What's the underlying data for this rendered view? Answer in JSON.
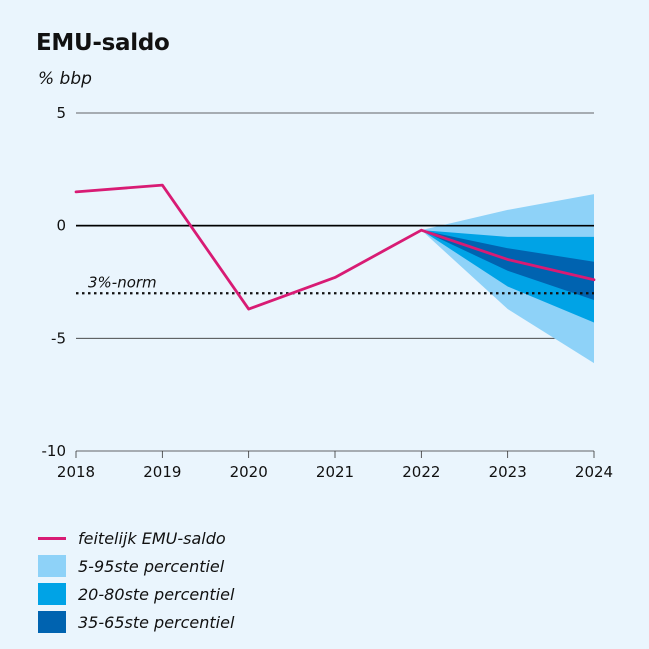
{
  "chart_data": {
    "type": "line",
    "title": "EMU-saldo",
    "ylabel": "% bbp",
    "xlabel": "",
    "x": [
      2018,
      2019,
      2020,
      2021,
      2022,
      2023,
      2024
    ],
    "ylim": [
      -10,
      5
    ],
    "yticks": [
      5,
      0,
      -5,
      -10
    ],
    "grid": true,
    "series": [
      {
        "name": "feitelijk EMU-saldo",
        "x": [
          2018,
          2019,
          2020,
          2021,
          2022,
          2023,
          2024
        ],
        "values": [
          1.5,
          1.8,
          -3.7,
          -2.3,
          -0.2,
          -1.5,
          -2.4
        ],
        "color": "#d81b74"
      }
    ],
    "bands": [
      {
        "name": "5-95ste percentiel",
        "color": "#8ed2f8",
        "x": [
          2022,
          2023,
          2024
        ],
        "upper": [
          -0.2,
          0.7,
          1.4
        ],
        "lower": [
          -0.2,
          -3.7,
          -6.1
        ]
      },
      {
        "name": "20-80ste percentiel",
        "color": "#00a3e6",
        "x": [
          2022,
          2023,
          2024
        ],
        "upper": [
          -0.2,
          -0.5,
          -0.5
        ],
        "lower": [
          -0.2,
          -2.7,
          -4.3
        ]
      },
      {
        "name": "35-65ste percentiel",
        "color": "#0063b0",
        "x": [
          2022,
          2023,
          2024
        ],
        "upper": [
          -0.2,
          -1.0,
          -1.6
        ],
        "lower": [
          -0.2,
          -2.0,
          -3.3
        ]
      }
    ],
    "reference_line": {
      "label": "3%-norm",
      "value": -3,
      "style": "dotted"
    }
  },
  "legend": [
    {
      "label": "feitelijk EMU-saldo",
      "kind": "line",
      "color": "#d81b74"
    },
    {
      "label": "5-95ste percentiel",
      "kind": "swatch",
      "color": "#8ed2f8"
    },
    {
      "label": "20-80ste percentiel",
      "kind": "swatch",
      "color": "#00a3e6"
    },
    {
      "label": "35-65ste percentiel",
      "kind": "swatch",
      "color": "#0063b0"
    }
  ]
}
